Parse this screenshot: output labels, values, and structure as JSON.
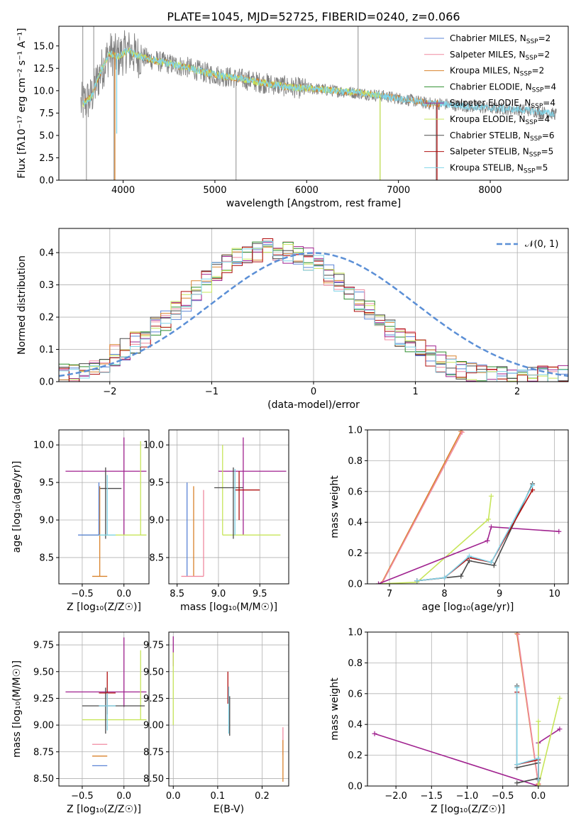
{
  "palette": {
    "Chabrier MILES": "#5b84d6",
    "Salpeter MILES": "#f08aa0",
    "Kroupa MILES": "#d9822b",
    "Chabrier ELODIE": "#2f8f2f",
    "Salpeter ELODIE": "#a0228f",
    "Kroupa ELODIE": "#c7e55a",
    "Chabrier STELIB": "#4a4a4a",
    "Salpeter STELIB": "#b01010",
    "Kroupa STELIB": "#80d4e8",
    "data_spectrum": "#808080",
    "gaussian": "#5b8fd6"
  },
  "chart_data": [
    {
      "id": "spectrum",
      "type": "line",
      "title": "PLATE=1045, MJD=52725, FIBERID=0240, z=0.066",
      "xlabel": "wavelength [Angstrom, rest frame]",
      "ylabel": "Flux [fλ10⁻¹⁷ erg cm⁻² s⁻¹ A⁻¹]",
      "xlim": [
        3300,
        8850
      ],
      "ylim": [
        0,
        17.2
      ],
      "xticks": [
        "4000",
        "5000",
        "6000",
        "7000",
        "8000"
      ],
      "yticks": [
        "0.0",
        "2.5",
        "5.0",
        "7.5",
        "10.0",
        "12.5",
        "15.0"
      ],
      "xtick_values": [
        4000,
        5000,
        6000,
        7000,
        8000
      ],
      "ytick_values": [
        0,
        2.5,
        5,
        7.5,
        10,
        12.5,
        15
      ],
      "grid": false,
      "legend_position": "top-right",
      "legend": [
        {
          "label": "Chabrier MILES, N",
          "sub": "SSP",
          "suffix": "=2"
        },
        {
          "label": "Salpeter MILES, N",
          "sub": "SSP",
          "suffix": "=2"
        },
        {
          "label": "Kroupa MILES, N",
          "sub": "SSP",
          "suffix": "=2"
        },
        {
          "label": "Chabrier ELODIE, N",
          "sub": "SSP",
          "suffix": "=4"
        },
        {
          "label": "Salpeter ELODIE, N",
          "sub": "SSP",
          "suffix": "=4"
        },
        {
          "label": "Kroupa ELODIE, N",
          "sub": "SSP",
          "suffix": "=4"
        },
        {
          "label": "Chabrier STELIB, N",
          "sub": "SSP",
          "suffix": "=6"
        },
        {
          "label": "Salpeter STELIB, N",
          "sub": "SSP",
          "suffix": "=5"
        },
        {
          "label": "Kroupa STELIB, N",
          "sub": "SSP",
          "suffix": "=5"
        }
      ],
      "model_continuum": {
        "x": [
          3550,
          3650,
          3750,
          3850,
          3950,
          4050,
          4150,
          4300,
          4500,
          4700,
          4900,
          5100,
          5300,
          5500,
          5700,
          5900,
          6100,
          6300,
          6500,
          6700,
          6900,
          7100,
          7300,
          7500,
          7700,
          7900,
          8100,
          8300,
          8500,
          8700
        ],
        "y": [
          8.5,
          9.2,
          12.0,
          14.2,
          13.8,
          14.5,
          13.9,
          13.5,
          13.0,
          12.6,
          12.0,
          11.6,
          11.3,
          10.9,
          10.6,
          10.3,
          10.2,
          10.0,
          9.8,
          9.6,
          9.3,
          9.0,
          8.6,
          8.5,
          8.3,
          8.1,
          8.0,
          7.9,
          7.7,
          7.4
        ]
      },
      "data_spikes": [
        {
          "x": 3560,
          "y": 17.2
        },
        {
          "x": 3600,
          "y": 0
        },
        {
          "x": 3680,
          "y": 17.2
        },
        {
          "x": 3900,
          "y": 0
        },
        {
          "x": 5230,
          "y": 0
        },
        {
          "x": 6560,
          "y": 17.2
        },
        {
          "x": 6800,
          "y": 0
        },
        {
          "x": 7410,
          "y": 0
        }
      ]
    },
    {
      "id": "residuals",
      "type": "histogram",
      "xlabel": "(data-model)/error",
      "ylabel": "Normed distribution",
      "xlim": [
        -2.5,
        2.5
      ],
      "ylim": [
        0,
        0.475
      ],
      "xticks": [
        "−2",
        "−1",
        "0",
        "1",
        "2"
      ],
      "yticks": [
        "0.0",
        "0.1",
        "0.2",
        "0.3",
        "0.4"
      ],
      "xtick_values": [
        -2,
        -1,
        0,
        1,
        2
      ],
      "ytick_values": [
        0,
        0.1,
        0.2,
        0.3,
        0.4
      ],
      "grid": true,
      "legend_position": "top-right",
      "legend": [
        "𝒩(0, 1)"
      ],
      "bin_edges_start": -2.5,
      "bin_width": 0.1,
      "reference_values": [
        0.02,
        0.025,
        0.03,
        0.045,
        0.06,
        0.08,
        0.1,
        0.12,
        0.14,
        0.17,
        0.19,
        0.22,
        0.25,
        0.28,
        0.31,
        0.34,
        0.36,
        0.38,
        0.395,
        0.4,
        0.41,
        0.405,
        0.4,
        0.39,
        0.38,
        0.36,
        0.33,
        0.31,
        0.28,
        0.25,
        0.22,
        0.19,
        0.16,
        0.14,
        0.12,
        0.1,
        0.08,
        0.06,
        0.045,
        0.035,
        0.025,
        0.02,
        0.02,
        0.015,
        0.015,
        0.015,
        0.015,
        0.015,
        0.015,
        0.015
      ]
    },
    {
      "id": "age-vs-Z",
      "type": "errorbar",
      "xlabel": "Z [log₁₀(Z/Z☉)]",
      "ylabel": "age  [log₁₀(age/yr)]",
      "xlim": [
        -0.78,
        0.3
      ],
      "ylim": [
        8.15,
        10.2
      ],
      "xticks": [
        "−0.5",
        "0.0"
      ],
      "yticks": [
        "8.5",
        "9.0",
        "9.5",
        "10.0"
      ],
      "xtick_values": [
        -0.5,
        0
      ],
      "ytick_values": [
        8.5,
        9,
        9.5,
        10
      ],
      "grid": true,
      "points": [
        {
          "model": "Salpeter ELODIE",
          "x": 0.0,
          "y": 9.65,
          "x_lo": -0.7,
          "x_hi": 0.27,
          "y_lo": 8.8,
          "y_hi": 10.1
        },
        {
          "model": "Kroupa ELODIE",
          "x": 0.2,
          "y": 8.8,
          "x_lo": -0.5,
          "x_hi": 0.27,
          "y_lo": 8.8,
          "y_hi": 10.05
        },
        {
          "model": "Chabrier STELIB",
          "x": -0.22,
          "y": 9.42,
          "x_lo": -0.3,
          "x_hi": -0.03,
          "y_lo": 8.75,
          "y_hi": 9.7
        },
        {
          "model": "Kroupa MILES",
          "x": -0.29,
          "y": 8.25,
          "x_lo": -0.38,
          "x_hi": -0.2,
          "y_lo": 8.25,
          "y_hi": 9.45
        },
        {
          "model": "Kroupa STELIB",
          "x": -0.2,
          "y": 8.8,
          "x_lo": -0.3,
          "x_hi": -0.1,
          "y_lo": 8.8,
          "y_hi": 9.6
        },
        {
          "model": "Chabrier MILES",
          "x": -0.3,
          "y": 8.8,
          "x_lo": -0.55,
          "x_hi": -0.3,
          "y_lo": 8.8,
          "y_hi": 9.5
        }
      ]
    },
    {
      "id": "age-vs-mass",
      "type": "errorbar",
      "xlabel": "mass [log₁₀(M/M☉)]",
      "ylabel": "",
      "xlim": [
        8.4,
        9.85
      ],
      "ylim": [
        8.15,
        10.2
      ],
      "xticks": [
        "8.5",
        "9.0",
        "9.5"
      ],
      "yticks": [
        "8.5",
        "9.0",
        "9.5",
        "10.0"
      ],
      "xtick_values": [
        8.5,
        9,
        9.5
      ],
      "ytick_values": [
        8.5,
        9,
        9.5,
        10
      ],
      "grid": true,
      "points": [
        {
          "model": "Salpeter ELODIE",
          "x": 9.3,
          "y": 9.65,
          "x_lo": 9.0,
          "x_hi": 9.82,
          "y_lo": 8.8,
          "y_hi": 10.1
        },
        {
          "model": "Kroupa ELODIE",
          "x": 9.05,
          "y": 8.8,
          "x_lo": 9.05,
          "x_hi": 9.75,
          "y_lo": 8.8,
          "y_hi": 10.0
        },
        {
          "model": "Chabrier STELIB",
          "x": 9.18,
          "y": 9.43,
          "x_lo": 8.95,
          "x_hi": 9.3,
          "y_lo": 8.75,
          "y_hi": 9.7
        },
        {
          "model": "Salpeter STELIB",
          "x": 9.25,
          "y": 9.4,
          "x_lo": 9.2,
          "x_hi": 9.5,
          "y_lo": 9.0,
          "y_hi": 9.65
        },
        {
          "model": "Chabrier MILES",
          "x": 8.62,
          "y": 8.25,
          "x_lo": 8.62,
          "x_hi": 8.62,
          "y_lo": 8.25,
          "y_hi": 9.5
        },
        {
          "model": "Kroupa MILES",
          "x": 8.7,
          "y": 8.25,
          "x_lo": 8.7,
          "x_hi": 8.7,
          "y_lo": 8.25,
          "y_hi": 9.45
        },
        {
          "model": "Salpeter MILES",
          "x": 8.82,
          "y": 8.25,
          "x_lo": 8.55,
          "x_hi": 8.82,
          "y_lo": 8.25,
          "y_hi": 9.4
        },
        {
          "model": "Kroupa STELIB",
          "x": 9.2,
          "y": 9.4,
          "x_lo": 9.2,
          "x_hi": 9.2,
          "y_lo": 8.8,
          "y_hi": 9.68
        }
      ]
    },
    {
      "id": "weight-vs-age",
      "type": "line",
      "xlabel": "age  [log₁₀(age/yr)]",
      "ylabel": "mass weight",
      "xlim": [
        6.6,
        10.25
      ],
      "ylim": [
        0,
        1.0
      ],
      "xticks": [
        "7",
        "8",
        "9",
        "10"
      ],
      "yticks": [
        "0.0",
        "0.2",
        "0.4",
        "0.6",
        "0.8",
        "1.0"
      ],
      "xtick_values": [
        7,
        8,
        9,
        10
      ],
      "ytick_values": [
        0,
        0.2,
        0.4,
        0.6,
        0.8,
        1.0
      ],
      "grid": true,
      "series": [
        {
          "model": "Kroupa MILES",
          "x": [
            6.85,
            8.3
          ],
          "y": [
            0.0,
            0.99
          ]
        },
        {
          "model": "Salpeter MILES",
          "x": [
            6.86,
            8.32
          ],
          "y": [
            0.0,
            0.985
          ]
        },
        {
          "model": "Kroupa ELODIE",
          "x": [
            6.8,
            7.5,
            8.8,
            8.85
          ],
          "y": [
            0.0,
            0.01,
            0.42,
            0.57
          ]
        },
        {
          "model": "Salpeter ELODIE",
          "x": [
            6.8,
            8.78,
            8.85,
            10.08
          ],
          "y": [
            0.0,
            0.28,
            0.37,
            0.34
          ]
        },
        {
          "model": "Chabrier STELIB",
          "x": [
            7.5,
            8.3,
            8.45,
            8.9,
            9.6
          ],
          "y": [
            0.02,
            0.05,
            0.15,
            0.12,
            0.65
          ]
        },
        {
          "model": "Salpeter STELIB",
          "x": [
            7.5,
            8.0,
            8.45,
            8.85,
            9.6
          ],
          "y": [
            0.02,
            0.04,
            0.17,
            0.14,
            0.61
          ]
        },
        {
          "model": "Kroupa STELIB",
          "x": [
            7.5,
            8.0,
            8.45,
            8.85,
            9.6
          ],
          "y": [
            0.02,
            0.04,
            0.18,
            0.14,
            0.64
          ]
        }
      ]
    },
    {
      "id": "mass-vs-Z",
      "type": "errorbar",
      "xlabel": "Z [log₁₀(Z/Z☉)]",
      "ylabel": "mass [log₁₀(M/M☉)]",
      "xlim": [
        -0.78,
        0.3
      ],
      "ylim": [
        8.43,
        9.87
      ],
      "xticks": [
        "−0.5",
        "0.0"
      ],
      "yticks": [
        "8.50",
        "8.75",
        "9.00",
        "9.25",
        "9.50",
        "9.75"
      ],
      "xtick_values": [
        -0.5,
        0
      ],
      "ytick_values": [
        8.5,
        8.75,
        9,
        9.25,
        9.5,
        9.75
      ],
      "grid": true,
      "points": [
        {
          "model": "Salpeter ELODIE",
          "x": 0.0,
          "y": 9.31,
          "x_lo": -0.7,
          "x_hi": 0.27,
          "y_lo": 9.17,
          "y_hi": 9.82
        },
        {
          "model": "Kroupa ELODIE",
          "x": 0.2,
          "y": 9.05,
          "x_lo": -0.5,
          "x_hi": 0.27,
          "y_lo": 9.05,
          "y_hi": 9.7
        },
        {
          "model": "Chabrier STELIB",
          "x": -0.22,
          "y": 9.18,
          "x_lo": -0.5,
          "x_hi": 0.25,
          "y_lo": 8.92,
          "y_hi": 9.35
        },
        {
          "model": "Salpeter STELIB",
          "x": -0.2,
          "y": 9.3,
          "x_lo": -0.3,
          "x_hi": -0.1,
          "y_lo": 9.1,
          "y_hi": 9.5
        },
        {
          "model": "Kroupa STELIB",
          "x": -0.2,
          "y": 9.18,
          "x_lo": -0.3,
          "x_hi": -0.1,
          "y_lo": 8.95,
          "y_hi": 9.3
        },
        {
          "model": "Salpeter MILES",
          "x": -0.29,
          "y": 8.82,
          "x_lo": -0.38,
          "x_hi": -0.2,
          "y_lo": 8.82,
          "y_hi": 8.82
        },
        {
          "model": "Kroupa MILES",
          "x": -0.29,
          "y": 8.71,
          "x_lo": -0.38,
          "x_hi": -0.2,
          "y_lo": 8.71,
          "y_hi": 8.71
        },
        {
          "model": "Chabrier MILES",
          "x": -0.29,
          "y": 8.62,
          "x_lo": -0.38,
          "x_hi": -0.2,
          "y_lo": 8.62,
          "y_hi": 8.62
        }
      ]
    },
    {
      "id": "mass-vs-EBV",
      "type": "errorbar",
      "xlabel": "E(B-V)",
      "ylabel": "",
      "xlim": [
        -0.01,
        0.26
      ],
      "ylim": [
        8.43,
        9.87
      ],
      "xticks": [
        "0.0",
        "0.1",
        "0.2"
      ],
      "yticks": [
        "8.50",
        "8.75",
        "9.00",
        "9.25",
        "9.50",
        "9.75"
      ],
      "xtick_values": [
        0,
        0.1,
        0.2
      ],
      "ytick_values": [
        8.5,
        8.75,
        9,
        9.25,
        9.5,
        9.75
      ],
      "grid": true,
      "points": [
        {
          "model": "Salpeter ELODIE",
          "x": 0.0,
          "y": 9.7,
          "x_lo": 0.0,
          "x_hi": 0.0,
          "y_lo": 9.55,
          "y_hi": 9.83
        },
        {
          "model": "Kroupa ELODIE",
          "x": 0.0,
          "y": 9.3,
          "x_lo": 0.0,
          "x_hi": 0.0,
          "y_lo": 9.0,
          "y_hi": 9.68
        },
        {
          "model": "Salpeter STELIB",
          "x": 0.123,
          "y": 9.35,
          "x_lo": 0.123,
          "x_hi": 0.123,
          "y_lo": 9.2,
          "y_hi": 9.5
        },
        {
          "model": "Kroupa STELIB",
          "x": 0.125,
          "y": 9.15,
          "x_lo": 0.125,
          "x_hi": 0.125,
          "y_lo": 8.92,
          "y_hi": 9.36
        },
        {
          "model": "Chabrier STELIB",
          "x": 0.127,
          "y": 9.1,
          "x_lo": 0.127,
          "x_hi": 0.127,
          "y_lo": 8.9,
          "y_hi": 9.27
        },
        {
          "model": "Salpeter MILES",
          "x": 0.247,
          "y": 8.85,
          "x_lo": 0.247,
          "x_hi": 0.247,
          "y_lo": 8.72,
          "y_hi": 8.98
        },
        {
          "model": "Kroupa MILES",
          "x": 0.247,
          "y": 8.65,
          "x_lo": 0.247,
          "x_hi": 0.247,
          "y_lo": 8.47,
          "y_hi": 8.86
        }
      ]
    },
    {
      "id": "weight-vs-Z",
      "type": "line",
      "xlabel": "Z [log₁₀(Z/Z☉)]",
      "ylabel": "mass weight",
      "xlim": [
        -2.4,
        0.42
      ],
      "ylim": [
        0,
        1.0
      ],
      "xticks": [
        "−2.0",
        "−1.5",
        "−1.0",
        "−0.5",
        "0.0"
      ],
      "yticks": [
        "0.0",
        "0.2",
        "0.4",
        "0.6",
        "0.8",
        "1.0"
      ],
      "xtick_values": [
        -2,
        -1.5,
        -1,
        -0.5,
        0
      ],
      "ytick_values": [
        0,
        0.2,
        0.4,
        0.6,
        0.8,
        1.0
      ],
      "grid": true,
      "series": [
        {
          "model": "Kroupa MILES",
          "x": [
            -0.3,
            0.0
          ],
          "y": [
            0.99,
            0.01
          ]
        },
        {
          "model": "Salpeter MILES",
          "x": [
            -0.29,
            0.0
          ],
          "y": [
            0.985,
            0.015
          ]
        },
        {
          "model": "Salpeter ELODIE",
          "x": [
            -2.3,
            0.0,
            0.0,
            0.3
          ],
          "y": [
            0.34,
            0.0,
            0.28,
            0.37
          ]
        },
        {
          "model": "Kroupa ELODIE",
          "x": [
            0.0,
            0.0,
            0.0,
            0.3
          ],
          "y": [
            0.0,
            0.42,
            0.0,
            0.57
          ]
        },
        {
          "model": "Chabrier STELIB",
          "x": [
            -0.3,
            -0.3,
            0.0,
            0.0,
            -0.3
          ],
          "y": [
            0.65,
            0.12,
            0.15,
            0.05,
            0.02
          ]
        },
        {
          "model": "Salpeter STELIB",
          "x": [
            -0.3,
            -0.3,
            0.0,
            0.0
          ],
          "y": [
            0.61,
            0.14,
            0.17,
            0.04
          ]
        },
        {
          "model": "Kroupa STELIB",
          "x": [
            -0.3,
            -0.3,
            0.0,
            0.0
          ],
          "y": [
            0.64,
            0.14,
            0.18,
            0.04
          ]
        }
      ]
    }
  ]
}
